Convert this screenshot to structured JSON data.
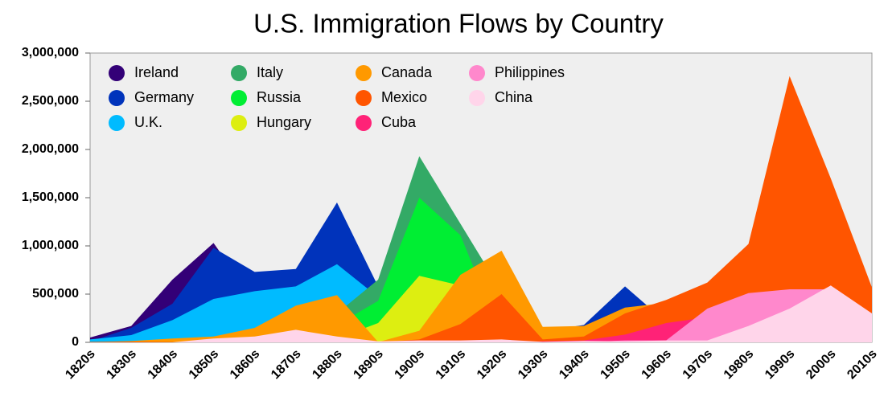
{
  "chart_data": {
    "type": "area",
    "title": "U.S. Immigration Flows by Country",
    "categories": [
      "1820s",
      "1830s",
      "1840s",
      "1850s",
      "1860s",
      "1870s",
      "1880s",
      "1890s",
      "1900s",
      "1910s",
      "1920s",
      "1930s",
      "1940s",
      "1950s",
      "1960s",
      "1970s",
      "1980s",
      "1990s",
      "2000s",
      "2010s"
    ],
    "ylim": [
      0,
      3000000
    ],
    "yticks": [
      0,
      {
        "value": 500000,
        "label": "500,000"
      },
      {
        "value": 1000000,
        "label": "1,000,000"
      },
      {
        "value": 1500000,
        "label": "1,500,000"
      },
      {
        "value": 2000000,
        "label": "2,000,000"
      },
      {
        "value": 2500000,
        "label": "2,500,000"
      },
      {
        "value": 3000000,
        "label": "3,000,000"
      }
    ],
    "series": [
      {
        "name": "Ireland",
        "color": "#330077",
        "values": [
          50000,
          170000,
          650000,
          1030000,
          430000,
          440000,
          650000,
          390000,
          340000,
          150000,
          200000,
          10000,
          20000,
          50000,
          40000,
          10000,
          30000,
          60000,
          20000,
          15000
        ]
      },
      {
        "name": "Germany",
        "color": "#0033bb",
        "values": [
          10000,
          150000,
          400000,
          980000,
          730000,
          760000,
          1450000,
          580000,
          340000,
          180000,
          410000,
          115000,
          180000,
          580000,
          210000,
          75000,
          90000,
          90000,
          120000,
          100000
        ]
      },
      {
        "name": "U.K.",
        "color": "#00bbff",
        "values": [
          30000,
          75000,
          230000,
          450000,
          530000,
          580000,
          810000,
          470000,
          470000,
          370000,
          340000,
          30000,
          140000,
          200000,
          230000,
          120000,
          150000,
          140000,
          170000,
          140000
        ]
      },
      {
        "name": "Italy",
        "color": "#33aa66",
        "values": [
          0,
          2000,
          2000,
          8000,
          10000,
          50000,
          300000,
          650000,
          1930000,
          1230000,
          530000,
          70000,
          60000,
          180000,
          210000,
          130000,
          60000,
          70000,
          30000,
          30000
        ]
      },
      {
        "name": "Russia",
        "color": "#00ee33",
        "values": [
          0,
          0,
          0,
          0,
          0,
          40000,
          180000,
          430000,
          1500000,
          1110000,
          70000,
          1000,
          500,
          500,
          2000,
          40000,
          60000,
          430000,
          170000,
          90000
        ]
      },
      {
        "name": "Hungary",
        "color": "#ddee11",
        "values": [
          0,
          0,
          0,
          0,
          0,
          10000,
          40000,
          200000,
          690000,
          590000,
          30000,
          5000,
          3000,
          30000,
          20000,
          10000,
          10000,
          10000,
          10000,
          10000
        ]
      },
      {
        "name": "Canada",
        "color": "#ff9900",
        "values": [
          2000,
          14000,
          40000,
          60000,
          150000,
          380000,
          490000,
          3000,
          120000,
          700000,
          950000,
          160000,
          170000,
          360000,
          410000,
          170000,
          150000,
          190000,
          240000,
          190000
        ]
      },
      {
        "name": "Mexico",
        "color": "#ff5500",
        "values": [
          5000,
          7000,
          3000,
          3000,
          2000,
          5000,
          1000,
          1000,
          30000,
          190000,
          500000,
          30000,
          60000,
          300000,
          440000,
          620000,
          1020000,
          2760000,
          1700000,
          570000
        ]
      },
      {
        "name": "Cuba",
        "color": "#ff2277",
        "values": [
          0,
          0,
          0,
          0,
          0,
          0,
          0,
          0,
          0,
          0,
          0,
          10000,
          20000,
          80000,
          200000,
          260000,
          140000,
          160000,
          270000,
          120000
        ]
      },
      {
        "name": "Philippines",
        "color": "#ff88cc",
        "values": [
          0,
          0,
          0,
          0,
          0,
          0,
          0,
          0,
          0,
          0,
          0,
          0,
          0,
          20000,
          20000,
          350000,
          510000,
          550000,
          550000,
          300000
        ]
      },
      {
        "name": "China",
        "color": "#ffd5ea",
        "values": [
          0,
          0,
          0,
          40000,
          60000,
          130000,
          60000,
          10000,
          20000,
          20000,
          30000,
          5000,
          15000,
          10000,
          20000,
          20000,
          170000,
          350000,
          590000,
          300000
        ]
      }
    ]
  }
}
